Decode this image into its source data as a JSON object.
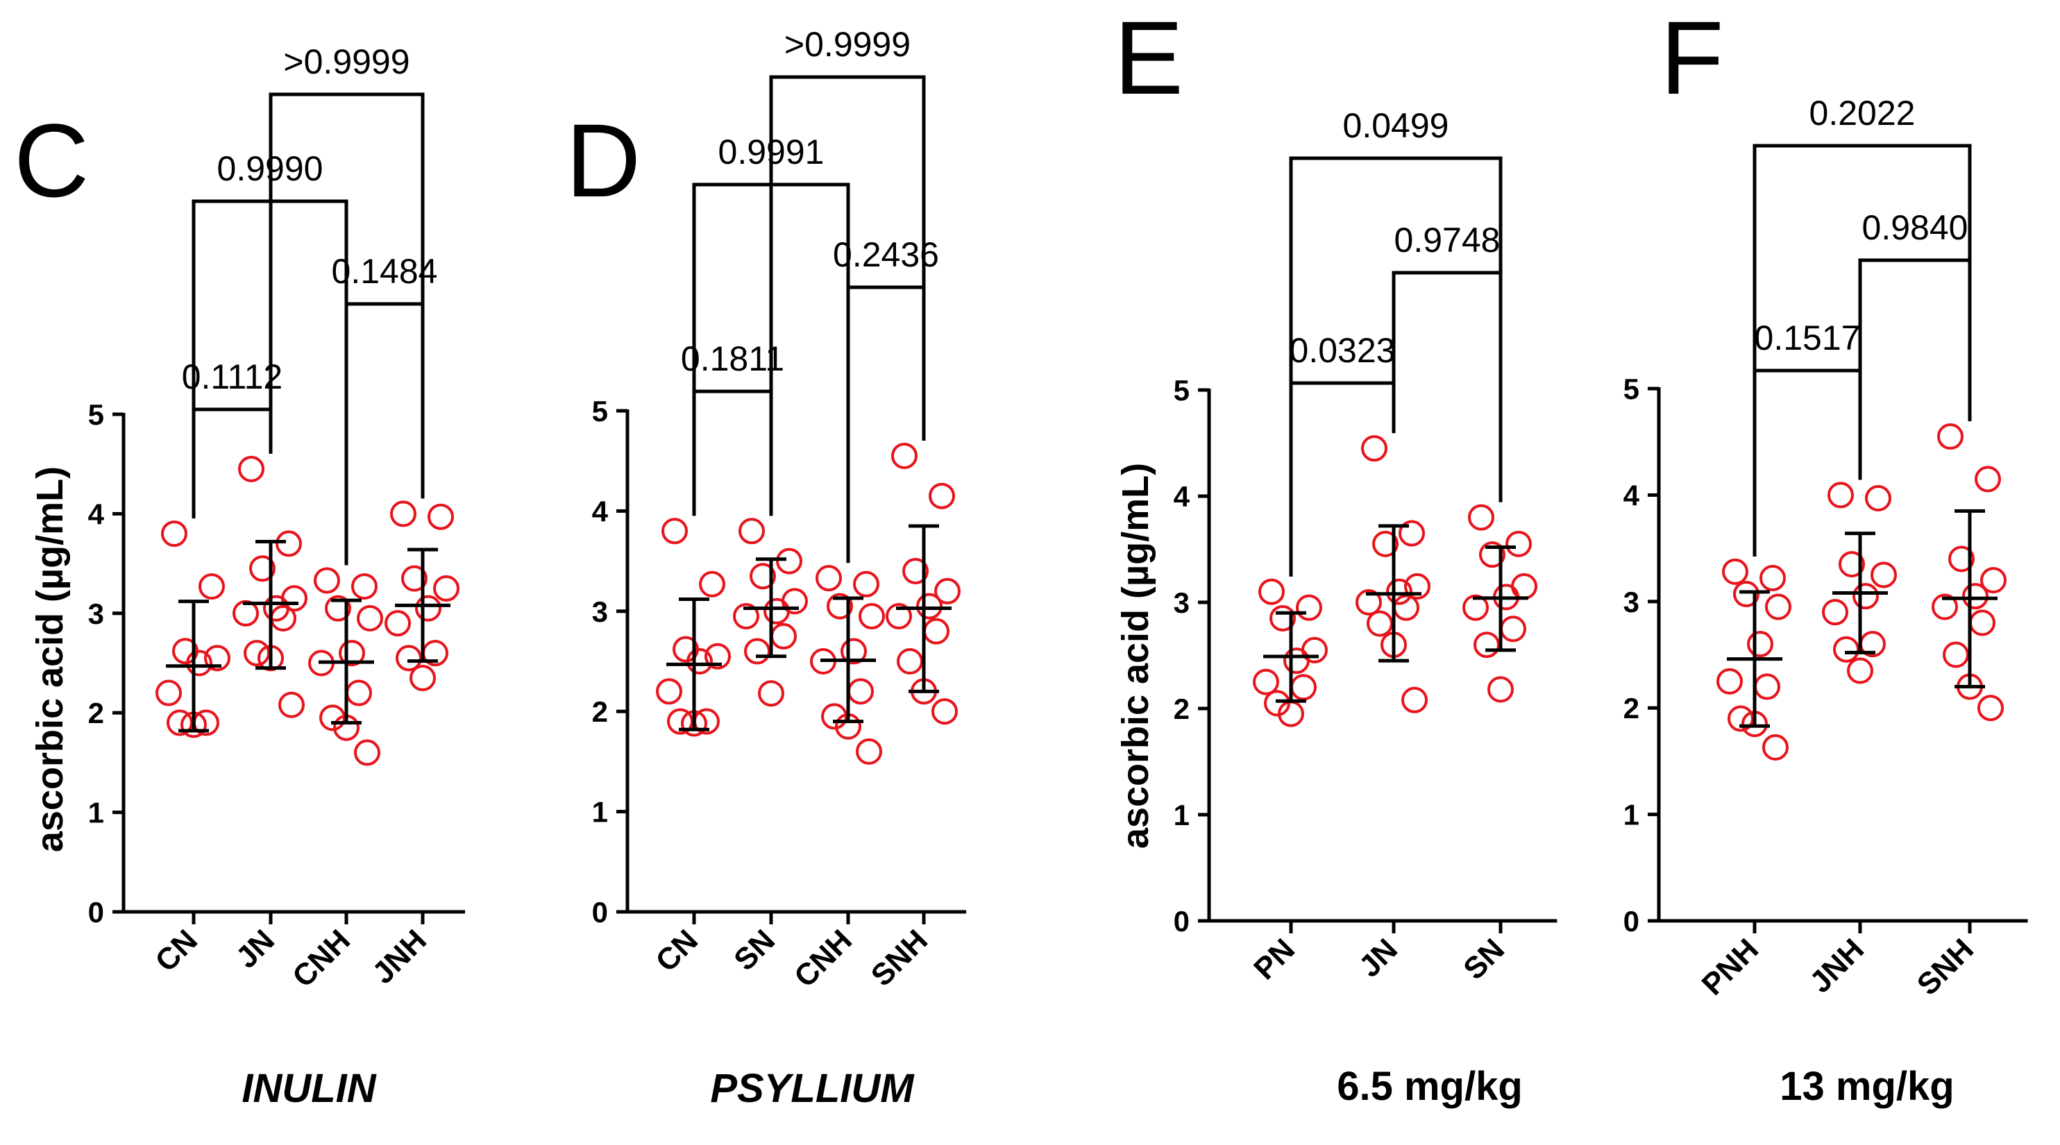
{
  "colors": {
    "point": "#e8141c",
    "axis": "#000000",
    "bars": "#000000"
  },
  "chart_data": [
    {
      "id": "C",
      "panel_label": "C",
      "type": "scatter",
      "ylabel": "ascorbic acid (µg/mL)",
      "sublabel": "INULIN",
      "sublabel_italic": true,
      "ylim": [
        0,
        5
      ],
      "yticks": [
        0,
        1,
        2,
        3,
        4,
        5
      ],
      "categories": [
        "CN",
        "JN",
        "CNH",
        "JNH"
      ],
      "groups": [
        {
          "name": "CN",
          "mean": 2.47,
          "sd_low": 1.82,
          "sd_high": 3.12,
          "points": [
            3.8,
            3.27,
            2.62,
            2.55,
            2.5,
            2.2,
            1.9,
            1.9,
            1.88
          ]
        },
        {
          "name": "JN",
          "mean": 3.1,
          "sd_low": 2.45,
          "sd_high": 3.72,
          "points": [
            4.45,
            3.7,
            3.45,
            3.15,
            3.05,
            3.0,
            2.95,
            2.6,
            2.55,
            2.08
          ]
        },
        {
          "name": "CNH",
          "mean": 2.51,
          "sd_low": 1.9,
          "sd_high": 3.13,
          "points": [
            3.33,
            3.27,
            3.05,
            2.95,
            2.6,
            2.5,
            2.2,
            1.95,
            1.85,
            1.6
          ]
        },
        {
          "name": "JNH",
          "mean": 3.08,
          "sd_low": 2.52,
          "sd_high": 3.64,
          "points": [
            4.0,
            3.97,
            3.35,
            3.25,
            3.05,
            2.9,
            2.6,
            2.55,
            2.35
          ]
        }
      ],
      "comparisons": [
        {
          "a": 0,
          "b": 1,
          "label": "0.1112"
        },
        {
          "a": 2,
          "b": 3,
          "label": "0.1484"
        },
        {
          "a": 0,
          "b": 2,
          "label": "0.9990"
        },
        {
          "a": 1,
          "b": 3,
          "label": ">0.9999"
        }
      ]
    },
    {
      "id": "D",
      "panel_label": "D",
      "type": "scatter",
      "ylabel": "",
      "sublabel": "PSYLLIUM",
      "sublabel_italic": true,
      "ylim": [
        0,
        5
      ],
      "yticks": [
        0,
        1,
        2,
        3,
        4,
        5
      ],
      "categories": [
        "CN",
        "SN",
        "CNH",
        "SNH"
      ],
      "groups": [
        {
          "name": "CN",
          "mean": 2.47,
          "sd_low": 1.82,
          "sd_high": 3.12,
          "points": [
            3.8,
            3.27,
            2.62,
            2.55,
            2.5,
            2.2,
            1.9,
            1.9,
            1.88
          ]
        },
        {
          "name": "SN",
          "mean": 3.03,
          "sd_low": 2.55,
          "sd_high": 3.52,
          "points": [
            3.8,
            3.5,
            3.35,
            3.1,
            3.0,
            2.95,
            2.75,
            2.6,
            2.18
          ]
        },
        {
          "name": "CNH",
          "mean": 2.51,
          "sd_low": 1.9,
          "sd_high": 3.13,
          "points": [
            3.33,
            3.27,
            3.05,
            2.95,
            2.6,
            2.5,
            2.2,
            1.95,
            1.85,
            1.6
          ]
        },
        {
          "name": "SNH",
          "mean": 3.03,
          "sd_low": 2.2,
          "sd_high": 3.85,
          "points": [
            4.55,
            4.15,
            3.4,
            3.2,
            3.05,
            2.95,
            2.8,
            2.5,
            2.2,
            2.0
          ]
        }
      ],
      "comparisons": [
        {
          "a": 0,
          "b": 1,
          "label": "0.1811"
        },
        {
          "a": 2,
          "b": 3,
          "label": "0.2436"
        },
        {
          "a": 0,
          "b": 2,
          "label": "0.9991"
        },
        {
          "a": 1,
          "b": 3,
          "label": ">0.9999"
        }
      ]
    },
    {
      "id": "E",
      "panel_label": "E",
      "type": "scatter",
      "ylabel": "ascorbic acid (µg/mL)",
      "sublabel": "6.5 mg/kg",
      "sublabel_italic": false,
      "ylim": [
        0,
        5
      ],
      "yticks": [
        0,
        1,
        2,
        3,
        4,
        5
      ],
      "categories": [
        "PN",
        "JN",
        "SN"
      ],
      "groups": [
        {
          "name": "PN",
          "mean": 2.49,
          "sd_low": 2.07,
          "sd_high": 2.9,
          "points": [
            3.1,
            2.95,
            2.85,
            2.55,
            2.45,
            2.25,
            2.2,
            2.05,
            1.95
          ]
        },
        {
          "name": "JN",
          "mean": 3.08,
          "sd_low": 2.45,
          "sd_high": 3.72,
          "points": [
            4.45,
            3.65,
            3.55,
            3.15,
            3.1,
            3.0,
            2.95,
            2.8,
            2.6,
            2.08
          ]
        },
        {
          "name": "SN",
          "mean": 3.04,
          "sd_low": 2.55,
          "sd_high": 3.52,
          "points": [
            3.8,
            3.55,
            3.45,
            3.15,
            3.05,
            2.95,
            2.75,
            2.6,
            2.18
          ]
        }
      ],
      "comparisons": [
        {
          "a": 0,
          "b": 1,
          "label": "0.0323"
        },
        {
          "a": 1,
          "b": 2,
          "label": "0.9748"
        },
        {
          "a": 0,
          "b": 2,
          "label": "0.0499"
        }
      ]
    },
    {
      "id": "F",
      "panel_label": "F",
      "type": "scatter",
      "ylabel": "",
      "sublabel": "13 mg/kg",
      "sublabel_italic": false,
      "ylim": [
        0,
        5
      ],
      "yticks": [
        0,
        1,
        2,
        3,
        4,
        5
      ],
      "categories": [
        "PNH",
        "JNH",
        "SNH"
      ],
      "groups": [
        {
          "name": "PNH",
          "mean": 2.46,
          "sd_low": 1.83,
          "sd_high": 3.09,
          "points": [
            3.28,
            3.22,
            3.07,
            2.95,
            2.6,
            2.25,
            2.2,
            1.9,
            1.85,
            1.63
          ]
        },
        {
          "name": "JNH",
          "mean": 3.08,
          "sd_low": 2.52,
          "sd_high": 3.64,
          "points": [
            4.0,
            3.97,
            3.35,
            3.25,
            3.05,
            2.9,
            2.6,
            2.55,
            2.35
          ]
        },
        {
          "name": "SNH",
          "mean": 3.03,
          "sd_low": 2.2,
          "sd_high": 3.85,
          "points": [
            4.55,
            4.15,
            3.4,
            3.2,
            3.05,
            2.95,
            2.8,
            2.5,
            2.2,
            2.0
          ]
        }
      ],
      "comparisons": [
        {
          "a": 0,
          "b": 1,
          "label": "0.1517"
        },
        {
          "a": 1,
          "b": 2,
          "label": "0.9840"
        },
        {
          "a": 0,
          "b": 2,
          "label": "0.2022"
        }
      ]
    }
  ]
}
